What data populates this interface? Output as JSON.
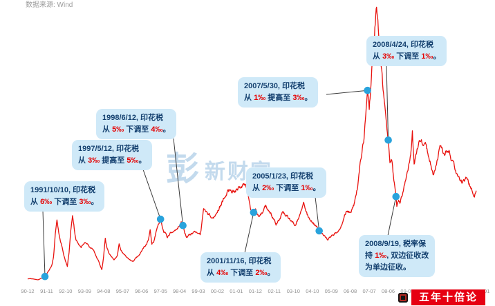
{
  "source_note": "数据来源: Wind",
  "watermark": {
    "mark": "彭",
    "text": "新财富"
  },
  "brand_badge": {
    "text": "五年十倍论",
    "color": "#e60012"
  },
  "colors": {
    "line": "#e8110d",
    "marker": "#29a3dc",
    "connector": "#3a3a3a",
    "bubble_bg": "#cfe9f8",
    "bubble_text": "#14406f",
    "highlight": "#e60000",
    "tick": "#8f8f8f"
  },
  "chart_data": {
    "type": "line",
    "title": "",
    "xlabel": "",
    "ylabel": "",
    "legend": "off",
    "grid": "off",
    "x_ticks": [
      "90-12",
      "91-11",
      "92-10",
      "93-09",
      "94-08",
      "95-07",
      "96-06",
      "97-05",
      "98-04",
      "99-03",
      "00-02",
      "01-01",
      "01-12",
      "02-11",
      "03-10",
      "04-10",
      "05-09",
      "06-08",
      "07-07",
      "08-06",
      "09-05",
      "10-04",
      "11-03",
      "12-02",
      "13-01"
    ],
    "xlim_months": [
      0,
      260
    ],
    "ylim": [
      0,
      6150
    ],
    "points": [
      [
        0,
        128
      ],
      [
        2,
        132
      ],
      [
        4,
        120
      ],
      [
        6,
        108
      ],
      [
        8,
        142
      ],
      [
        10,
        180
      ],
      [
        11,
        235
      ],
      [
        12,
        292
      ],
      [
        14,
        420
      ],
      [
        15,
        617
      ],
      [
        16,
        1100
      ],
      [
        17,
        1420
      ],
      [
        18,
        1140
      ],
      [
        19,
        960
      ],
      [
        20,
        823
      ],
      [
        21,
        650
      ],
      [
        22,
        515
      ],
      [
        23,
        400
      ],
      [
        24,
        720
      ],
      [
        25,
        1210
      ],
      [
        26,
        1536
      ],
      [
        27,
        1240
      ],
      [
        28,
        1010
      ],
      [
        29,
        925
      ],
      [
        30,
        855
      ],
      [
        31,
        800
      ],
      [
        32,
        885
      ],
      [
        33,
        948
      ],
      [
        34,
        918
      ],
      [
        36,
        822
      ],
      [
        38,
        775
      ],
      [
        40,
        595
      ],
      [
        41,
        520
      ],
      [
        42,
        425
      ],
      [
        43,
        333
      ],
      [
        44,
        612
      ],
      [
        45,
        1000
      ],
      [
        46,
        815
      ],
      [
        47,
        705
      ],
      [
        48,
        648
      ],
      [
        50,
        552
      ],
      [
        52,
        640
      ],
      [
        53,
        897
      ],
      [
        54,
        758
      ],
      [
        55,
        702
      ],
      [
        57,
        622
      ],
      [
        59,
        562
      ],
      [
        61,
        516
      ],
      [
        63,
        598
      ],
      [
        65,
        682
      ],
      [
        67,
        798
      ],
      [
        69,
        902
      ],
      [
        70,
        1005
      ],
      [
        71,
        1210
      ],
      [
        72,
        905
      ],
      [
        73,
        953
      ],
      [
        75,
        1255
      ],
      [
        77,
        1450
      ],
      [
        78,
        1305
      ],
      [
        79,
        1196
      ],
      [
        81,
        1048
      ],
      [
        83,
        1152
      ],
      [
        85,
        1205
      ],
      [
        87,
        1246
      ],
      [
        89,
        1378
      ],
      [
        90,
        1310
      ],
      [
        91,
        1152
      ],
      [
        92,
        1047
      ],
      [
        94,
        1102
      ],
      [
        96,
        1147
      ],
      [
        98,
        1178
      ],
      [
        100,
        1104
      ],
      [
        101,
        1352
      ],
      [
        102,
        1702
      ],
      [
        103,
        1648
      ],
      [
        105,
        1562
      ],
      [
        107,
        1478
      ],
      [
        109,
        1522
      ],
      [
        111,
        1698
      ],
      [
        113,
        1846
      ],
      [
        115,
        1998
      ],
      [
        116,
        2098
      ],
      [
        118,
        2046
      ],
      [
        120,
        2068
      ],
      [
        122,
        2122
      ],
      [
        124,
        2180
      ],
      [
        126,
        2242
      ],
      [
        127,
        2148
      ],
      [
        128,
        1898
      ],
      [
        129,
        1702
      ],
      [
        130,
        1548
      ],
      [
        131,
        1600
      ],
      [
        132,
        1642
      ],
      [
        134,
        1498
      ],
      [
        136,
        1598
      ],
      [
        138,
        1748
      ],
      [
        140,
        1652
      ],
      [
        142,
        1498
      ],
      [
        144,
        1348
      ],
      [
        146,
        1452
      ],
      [
        148,
        1598
      ],
      [
        150,
        1522
      ],
      [
        152,
        1448
      ],
      [
        154,
        1352
      ],
      [
        155,
        1298
      ],
      [
        157,
        1452
      ],
      [
        159,
        1698
      ],
      [
        160,
        1778
      ],
      [
        162,
        1552
      ],
      [
        164,
        1422
      ],
      [
        166,
        1348
      ],
      [
        168,
        1248
      ],
      [
        169,
        1190
      ],
      [
        171,
        1102
      ],
      [
        174,
        998
      ],
      [
        176,
        1078
      ],
      [
        178,
        1122
      ],
      [
        180,
        1161
      ],
      [
        182,
        1298
      ],
      [
        184,
        1548
      ],
      [
        185,
        1642
      ],
      [
        187,
        1598
      ],
      [
        189,
        1752
      ],
      [
        191,
        2098
      ],
      [
        193,
        2786
      ],
      [
        194,
        2998
      ],
      [
        195,
        3252
      ],
      [
        196,
        3798
      ],
      [
        197,
        4300
      ],
      [
        198,
        3898
      ],
      [
        199,
        4402
      ],
      [
        200,
        4998
      ],
      [
        201,
        5552
      ],
      [
        202,
        6100
      ],
      [
        203,
        5898
      ],
      [
        204,
        5262
      ],
      [
        205,
        4798
      ],
      [
        206,
        4348
      ],
      [
        207,
        3898
      ],
      [
        208,
        3448
      ],
      [
        209,
        3200
      ],
      [
        210,
        2736
      ],
      [
        211,
        2802
      ],
      [
        212,
        2398
      ],
      [
        213,
        2102
      ],
      [
        213.5,
        1950
      ],
      [
        214,
        1728
      ],
      [
        215,
        1902
      ],
      [
        216,
        1821
      ],
      [
        218,
        2102
      ],
      [
        220,
        2478
      ],
      [
        222,
        2898
      ],
      [
        223,
        3402
      ],
      [
        224,
        2668
      ],
      [
        225,
        2902
      ],
      [
        227,
        3198
      ],
      [
        229,
        3098
      ],
      [
        231,
        3052
      ],
      [
        232,
        2868
      ],
      [
        234,
        2598
      ],
      [
        235,
        2398
      ],
      [
        237,
        2652
      ],
      [
        239,
        3098
      ],
      [
        241,
        2898
      ],
      [
        243,
        2948
      ],
      [
        244,
        2998
      ],
      [
        246,
        2748
      ],
      [
        248,
        2548
      ],
      [
        250,
        2362
      ],
      [
        252,
        2282
      ],
      [
        254,
        2338
      ],
      [
        256,
        2222
      ],
      [
        258,
        2062
      ],
      [
        259,
        1978
      ],
      [
        260,
        2082
      ]
    ]
  },
  "events": [
    {
      "date": "1991/10/10",
      "month": 10,
      "value": 180,
      "lines": [
        [
          {
            "t": "1991/10/10, 印花税"
          }
        ],
        [
          {
            "t": "从 "
          },
          {
            "t": "6‰",
            "hl": true
          },
          {
            "t": " 下调至 "
          },
          {
            "t": "3‰",
            "hl": true
          },
          {
            "t": "。"
          }
        ]
      ]
    },
    {
      "date": "1997/5/12",
      "month": 77,
      "value": 1450,
      "lines": [
        [
          {
            "t": "1997/5/12, 印花税"
          }
        ],
        [
          {
            "t": "从 "
          },
          {
            "t": "3‰",
            "hl": true
          },
          {
            "t": " 提高至 "
          },
          {
            "t": "5‰",
            "hl": true
          },
          {
            "t": "。"
          }
        ]
      ]
    },
    {
      "date": "1998/6/12",
      "month": 90,
      "value": 1310,
      "lines": [
        [
          {
            "t": "1998/6/12, 印花税"
          }
        ],
        [
          {
            "t": "从 "
          },
          {
            "t": "5‰",
            "hl": true
          },
          {
            "t": " 下调至 "
          },
          {
            "t": "4‰",
            "hl": true
          },
          {
            "t": "。"
          }
        ]
      ]
    },
    {
      "date": "2001/11/16",
      "month": 131,
      "value": 1600,
      "lines": [
        [
          {
            "t": "2001/11/16, 印花税"
          }
        ],
        [
          {
            "t": "从 "
          },
          {
            "t": "4‰",
            "hl": true
          },
          {
            "t": " 下调至 "
          },
          {
            "t": "2‰",
            "hl": true
          },
          {
            "t": "。"
          }
        ]
      ]
    },
    {
      "date": "2005/1/23",
      "month": 169,
      "value": 1190,
      "lines": [
        [
          {
            "t": "2005/1/23, 印花税"
          }
        ],
        [
          {
            "t": "从 "
          },
          {
            "t": "2‰",
            "hl": true
          },
          {
            "t": " 下调至 "
          },
          {
            "t": "1‰",
            "hl": true
          },
          {
            "t": "。"
          }
        ]
      ]
    },
    {
      "date": "2007/5/30",
      "month": 197,
      "value": 4300,
      "lines": [
        [
          {
            "t": "2007/5/30, 印花税"
          }
        ],
        [
          {
            "t": "从 "
          },
          {
            "t": "1‰",
            "hl": true
          },
          {
            "t": " 提高至 "
          },
          {
            "t": "3‰",
            "hl": true
          },
          {
            "t": "。"
          }
        ]
      ]
    },
    {
      "date": "2008/4/24",
      "month": 209,
      "value": 3200,
      "lines": [
        [
          {
            "t": "2008/4/24, 印花税"
          }
        ],
        [
          {
            "t": "从 "
          },
          {
            "t": "3‰",
            "hl": true
          },
          {
            "t": " 下调至 "
          },
          {
            "t": "1‰",
            "hl": true
          },
          {
            "t": "。"
          }
        ]
      ]
    },
    {
      "date": "2008/9/19",
      "month": 213.5,
      "value": 1950,
      "lines": [
        [
          {
            "t": "2008/9/19, 税率保"
          }
        ],
        [
          {
            "t": "持 "
          },
          {
            "t": "1‰",
            "hl": true
          },
          {
            "t": ", 双边征收改"
          }
        ],
        [
          {
            "t": "为单边征收。"
          }
        ]
      ]
    }
  ]
}
